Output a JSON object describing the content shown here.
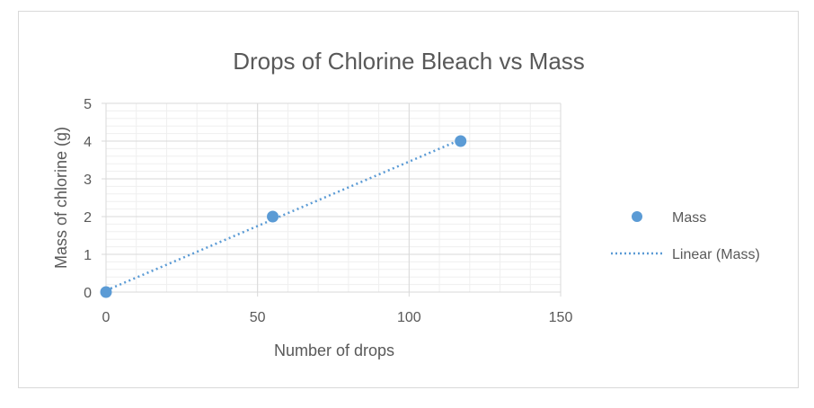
{
  "chart_data": {
    "type": "scatter",
    "title": "Drops of Chlorine Bleach vs Mass",
    "xlabel": "Number of drops",
    "ylabel": "Mass of chlorine (g)",
    "xlim": [
      0,
      150
    ],
    "ylim": [
      0,
      5
    ],
    "xticks": [
      0,
      50,
      100,
      150
    ],
    "yticks": [
      0,
      1,
      2,
      3,
      4,
      5
    ],
    "x_minor_step": 10,
    "y_minor_step": 0.2,
    "grid": true,
    "series": [
      {
        "name": "Mass",
        "x": [
          0,
          55,
          117
        ],
        "y": [
          0,
          2,
          4
        ],
        "color": "#5b9bd5"
      }
    ],
    "trendline": {
      "name": "Linear (Mass)",
      "type": "linear",
      "style": "dotted",
      "color": "#5b9bd5"
    },
    "legend": {
      "position": "right",
      "entries": [
        "Mass",
        "Linear (Mass)"
      ]
    }
  }
}
